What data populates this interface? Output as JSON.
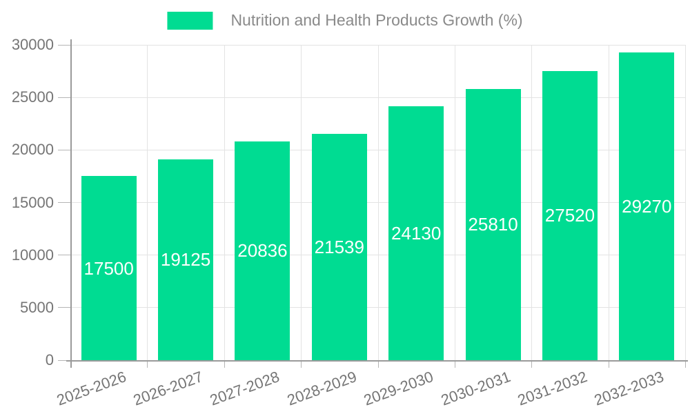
{
  "chart_data": {
    "type": "bar",
    "title": "Nutrition and Health Products Growth (%)",
    "categories": [
      "2025-2026",
      "2026-2027",
      "2027-2028",
      "2028-2029",
      "2029-2030",
      "2030-2031",
      "2031-2032",
      "2032-2033"
    ],
    "values": [
      17500,
      19125,
      20836,
      21539,
      24130,
      25810,
      27520,
      29270
    ],
    "value_labels": [
      "17500",
      "19125",
      "20836",
      "21539",
      "24130",
      "25810",
      "27520",
      "29270"
    ],
    "xlabel": "",
    "ylabel": "",
    "ylim": [
      0,
      30000
    ],
    "ytick_interval": 5000,
    "ytick_labels": [
      "0",
      "5000",
      "10000",
      "15000",
      "20000",
      "25000",
      "30000"
    ],
    "grid": true,
    "legend_position": "top",
    "colors": {
      "bar": "#00DC92",
      "value_label": "#ffffff",
      "axis_line": "#9a9a9a",
      "tick_mark": "#b5b5b5",
      "grid_line": "#e3e3e3",
      "tick_text": "#757575",
      "legend_text": "#8a8a8a",
      "background": "#ffffff"
    }
  }
}
